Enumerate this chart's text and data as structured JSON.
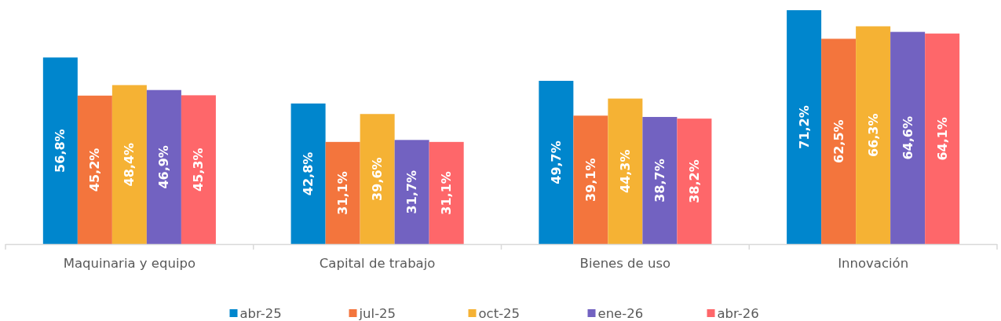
{
  "chart_data": {
    "type": "bar",
    "categories": [
      "Maquinaria y equipo",
      "Capital de trabajo",
      "Bienes de uso",
      "Innovación"
    ],
    "series": [
      {
        "name": "abr-25",
        "color": "#0086cd",
        "values": [
          56.8,
          42.8,
          49.7,
          71.2
        ],
        "value_labels": [
          "56,8%",
          "42,8%",
          "49,7%",
          "71,2%"
        ]
      },
      {
        "name": "jul-25",
        "color": "#f3753d",
        "values": [
          45.2,
          31.1,
          39.1,
          62.5
        ],
        "value_labels": [
          "45,2%",
          "31,1%",
          "39,1%",
          "62,5%"
        ]
      },
      {
        "name": "oct-25",
        "color": "#f5b234",
        "values": [
          48.4,
          39.6,
          44.3,
          66.3
        ],
        "value_labels": [
          "48,4%",
          "39,6%",
          "44,3%",
          "66,3%"
        ]
      },
      {
        "name": "ene-26",
        "color": "#7262c1",
        "values": [
          46.9,
          31.7,
          38.7,
          64.6
        ],
        "value_labels": [
          "46,9%",
          "31,7%",
          "38,7%",
          "64,6%"
        ]
      },
      {
        "name": "abr-26",
        "color": "#fe676a",
        "values": [
          45.3,
          31.1,
          38.2,
          64.1
        ],
        "value_labels": [
          "45,3%",
          "31,1%",
          "38,2%",
          "64,1%"
        ]
      }
    ],
    "legend": "bottom"
  }
}
